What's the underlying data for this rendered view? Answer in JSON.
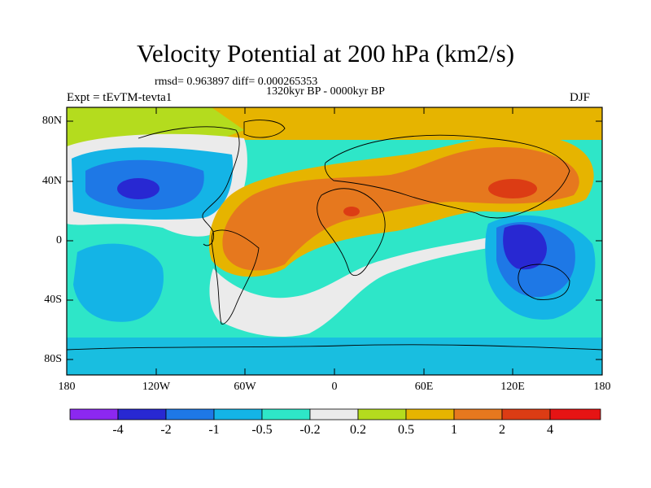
{
  "title": "Velocity Potential at 200 hPa (km2/s)",
  "stats": "rmsd= 0.963897 diff= 0.000265353",
  "period": "1320kyr BP - 0000kyr BP",
  "experiment": "Expt = tEvTM-tevta1",
  "season": "DJF",
  "y_ticks": [
    "80N",
    "40N",
    "0",
    "40S",
    "80S"
  ],
  "x_ticks": [
    "180",
    "120W",
    "60W",
    "0",
    "60E",
    "120E",
    "180"
  ],
  "colorbar": {
    "labels": [
      "-4",
      "-2",
      "-1",
      "-0.5",
      "-0.2",
      "0.2",
      "0.5",
      "1",
      "2",
      "4"
    ],
    "colors": [
      "#8c28f0",
      "#2828d2",
      "#1e78e6",
      "#14b4e6",
      "#2ee6c8",
      "#ebebeb",
      "#b4dc1e",
      "#e6b400",
      "#e6781e",
      "#dc3c14",
      "#e61414"
    ]
  }
}
